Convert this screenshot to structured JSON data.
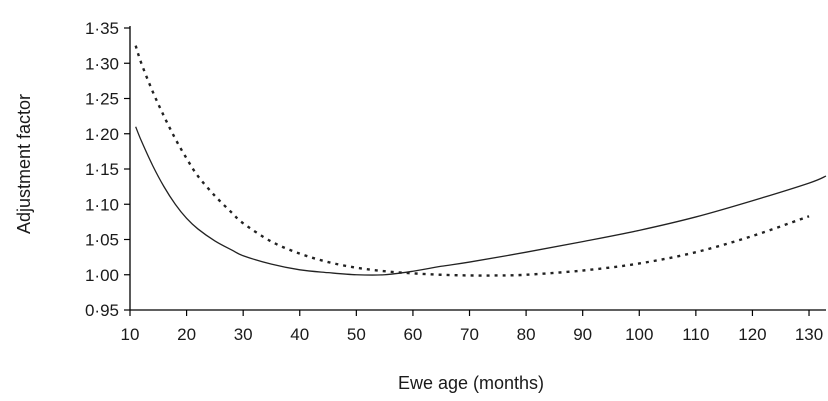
{
  "chart_data": {
    "type": "line",
    "title": "",
    "xlabel": "Ewe age (months)",
    "ylabel": "Adjustment factor",
    "xlim": [
      10,
      133
    ],
    "ylim": [
      0.95,
      1.35
    ],
    "x_ticks": [
      10,
      20,
      30,
      40,
      50,
      60,
      70,
      80,
      90,
      100,
      110,
      120,
      130
    ],
    "y_ticks": [
      0.95,
      1.0,
      1.05,
      1.1,
      1.15,
      1.2,
      1.25,
      1.3,
      1.35
    ],
    "x_tick_labels": [
      "10",
      "20",
      "30",
      "40",
      "50",
      "60",
      "70",
      "80",
      "90",
      "100",
      "110",
      "120",
      "130"
    ],
    "y_tick_labels": [
      "0·95",
      "1·00",
      "1·05",
      "1·10",
      "1·15",
      "1·20",
      "1·25",
      "1·30",
      "1·35"
    ],
    "grid": false,
    "legend": "none",
    "series": [
      {
        "style": "solid",
        "color": "#222222",
        "x": [
          11,
          12,
          14,
          16,
          18,
          20,
          22,
          25,
          28,
          30,
          35,
          40,
          45,
          50,
          55,
          60,
          65,
          70,
          80,
          90,
          100,
          110,
          120,
          130,
          133
        ],
        "y": [
          1.21,
          1.19,
          1.155,
          1.125,
          1.1,
          1.08,
          1.065,
          1.048,
          1.035,
          1.027,
          1.015,
          1.007,
          1.003,
          1.0,
          1.0,
          1.005,
          1.012,
          1.018,
          1.032,
          1.047,
          1.063,
          1.082,
          1.105,
          1.13,
          1.14
        ]
      },
      {
        "style": "dotted",
        "color": "#222222",
        "x": [
          11,
          12,
          14,
          16,
          18,
          20,
          22,
          25,
          28,
          30,
          35,
          40,
          45,
          50,
          55,
          60,
          65,
          70,
          75,
          80,
          90,
          100,
          110,
          120,
          130
        ],
        "y": [
          1.325,
          1.3,
          1.26,
          1.225,
          1.193,
          1.165,
          1.14,
          1.112,
          1.088,
          1.073,
          1.047,
          1.03,
          1.018,
          1.01,
          1.005,
          1.002,
          1.0,
          0.999,
          0.999,
          1.0,
          1.006,
          1.016,
          1.032,
          1.055,
          1.083
        ]
      }
    ]
  }
}
